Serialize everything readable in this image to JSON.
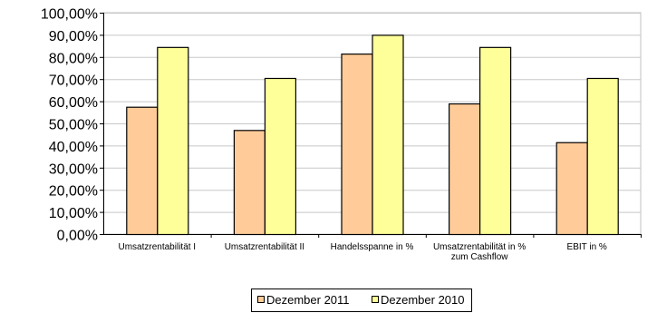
{
  "chart_data": {
    "type": "bar",
    "title": "",
    "xlabel": "",
    "ylabel": "",
    "ylim": [
      0,
      100
    ],
    "ytick_step": 10,
    "ytick_labels": [
      "0,00%",
      "10,00%",
      "20,00%",
      "30,00%",
      "40,00%",
      "50,00%",
      "60,00%",
      "70,00%",
      "80,00%",
      "90,00%",
      "100,00%"
    ],
    "grid": true,
    "legend_position": "bottom",
    "categories": [
      [
        "Umsatzrentabilität  I"
      ],
      [
        "Umsatzrentabilität  II"
      ],
      [
        "Handelsspanne  in %"
      ],
      [
        "Umsatzrentabilität  in %",
        "zum Cashflow"
      ],
      [
        "EBIT in %"
      ]
    ],
    "series": [
      {
        "name": "Dezember 2011",
        "color": "#FFCC99",
        "values": [
          57.5,
          47.0,
          81.5,
          59.0,
          41.5
        ]
      },
      {
        "name": "Dezember 2010",
        "color": "#FFFF99",
        "values": [
          84.5,
          70.5,
          90.0,
          84.5,
          70.5
        ]
      }
    ]
  }
}
